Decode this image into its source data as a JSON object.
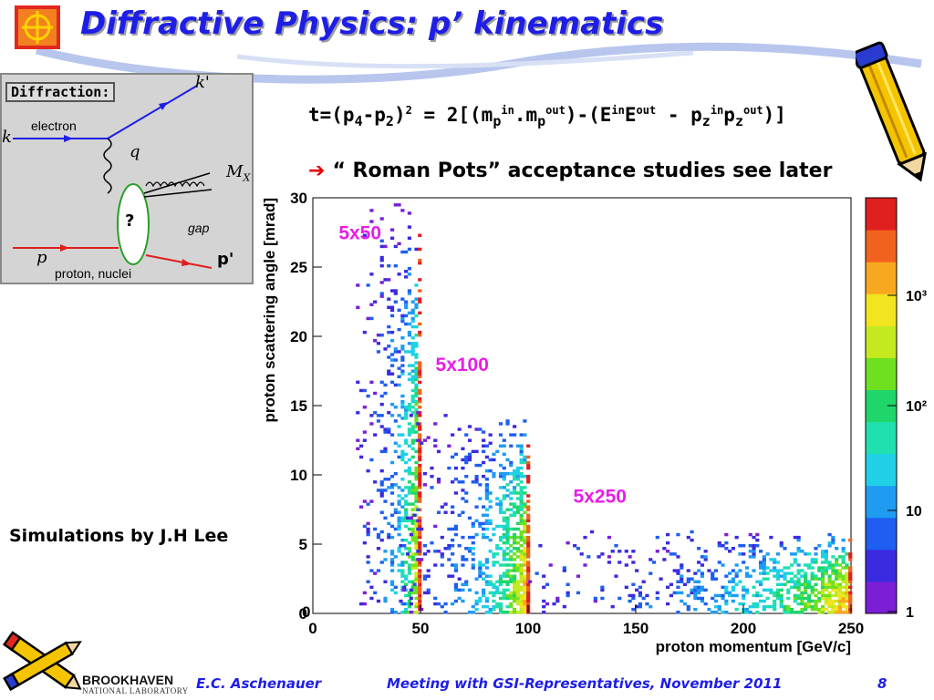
{
  "slide": {
    "title": "Diffractive Physics: p’ kinematics",
    "simulations_credit": "Simulations by J.H Lee",
    "roman_pots_note": "“ Roman Pots” acceptance studies see later",
    "formula": {
      "lhs": "t=(p",
      "sub4": "4",
      "minus": "-p",
      "sub2": "2",
      "close": ")",
      "sq": "2",
      "eqs": " = 2[(m",
      "p1": "p",
      "in1": "in",
      "dot": ".m",
      "p2": "p",
      "out1": "out",
      "mid": ")-(E",
      "in2": "in",
      "e": "E",
      "out2": "out",
      "mid2": " - p",
      "z1": "z",
      "in3": "in",
      "pz": "p",
      "z2": "z",
      "out3": "out",
      "end": ")]"
    }
  },
  "footer": {
    "author": "E.C. Aschenauer",
    "meeting": "Meeting with GSI-Representatives, November 2011",
    "page": "8",
    "lab_name": "BROOKHAVEN",
    "lab_sub": "NATIONAL LABORATORY"
  },
  "feynman": {
    "box_label": "Diffraction:",
    "k_in": "k",
    "k_out": "k'",
    "electron": "electron",
    "q": "q",
    "mx": "M",
    "mx_sub": "X",
    "gap": "gap",
    "p_in": "p",
    "p_out": "p'",
    "proton": "proton, nuclei",
    "blob": "?"
  },
  "chart_data": {
    "type": "heatmap",
    "xlabel": "proton momentum [GeV/c]",
    "ylabel": "proton scattering angle [mrad]",
    "xlim": [
      0,
      250
    ],
    "ylim": [
      0,
      30
    ],
    "xticks": [
      0,
      50,
      100,
      150,
      200,
      250
    ],
    "yticks": [
      0,
      5,
      10,
      15,
      20,
      25,
      30
    ],
    "color_scale": "log",
    "colorbar_ticks": [
      "1",
      "10",
      "10²",
      "10³"
    ],
    "annotations": [
      {
        "text": "5x50",
        "x": 12,
        "y": 27
      },
      {
        "text": "5x100",
        "x": 57,
        "y": 17.5
      },
      {
        "text": "5x250",
        "x": 121,
        "y": 8
      },
      {
        "text": "0",
        "x": 0,
        "y": 0
      }
    ],
    "bands": [
      {
        "name": "5x50",
        "momentum_max": 50,
        "angle_max": 29.5,
        "description": "dense vertical band peaking near 50 GeV/c, angles 0–29 mrad"
      },
      {
        "name": "5x100",
        "momentum_max": 100,
        "angle_max": 14.5,
        "description": "band peaking near 100 GeV/c, angles 0–14 mrad"
      },
      {
        "name": "5x250",
        "momentum_max": 250,
        "angle_max": 6,
        "description": "band peaking near 250 GeV/c, angles 0–6 mrad"
      }
    ]
  }
}
